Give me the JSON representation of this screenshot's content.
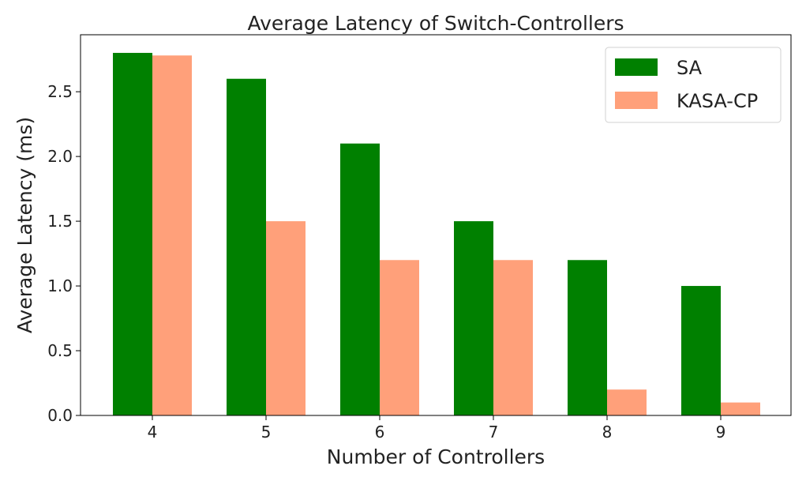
{
  "chart_data": {
    "type": "bar",
    "title": "Average Latency of Switch-Controllers",
    "xlabel": "Number of Controllers",
    "ylabel": "Average Latency (ms)",
    "categories": [
      "4",
      "5",
      "6",
      "7",
      "8",
      "9"
    ],
    "series": [
      {
        "name": "SA",
        "color": "#008000",
        "values": [
          2.8,
          2.6,
          2.1,
          1.5,
          1.2,
          1.0
        ]
      },
      {
        "name": "KASA-CP",
        "color": "#ffa07a",
        "values": [
          2.78,
          1.5,
          1.2,
          1.2,
          0.2,
          0.1
        ]
      }
    ],
    "ylim": [
      0,
      2.94
    ],
    "yticks": [
      "0.0",
      "0.5",
      "1.0",
      "1.5",
      "2.0",
      "2.5"
    ],
    "grid": false,
    "legend": "top-right"
  }
}
